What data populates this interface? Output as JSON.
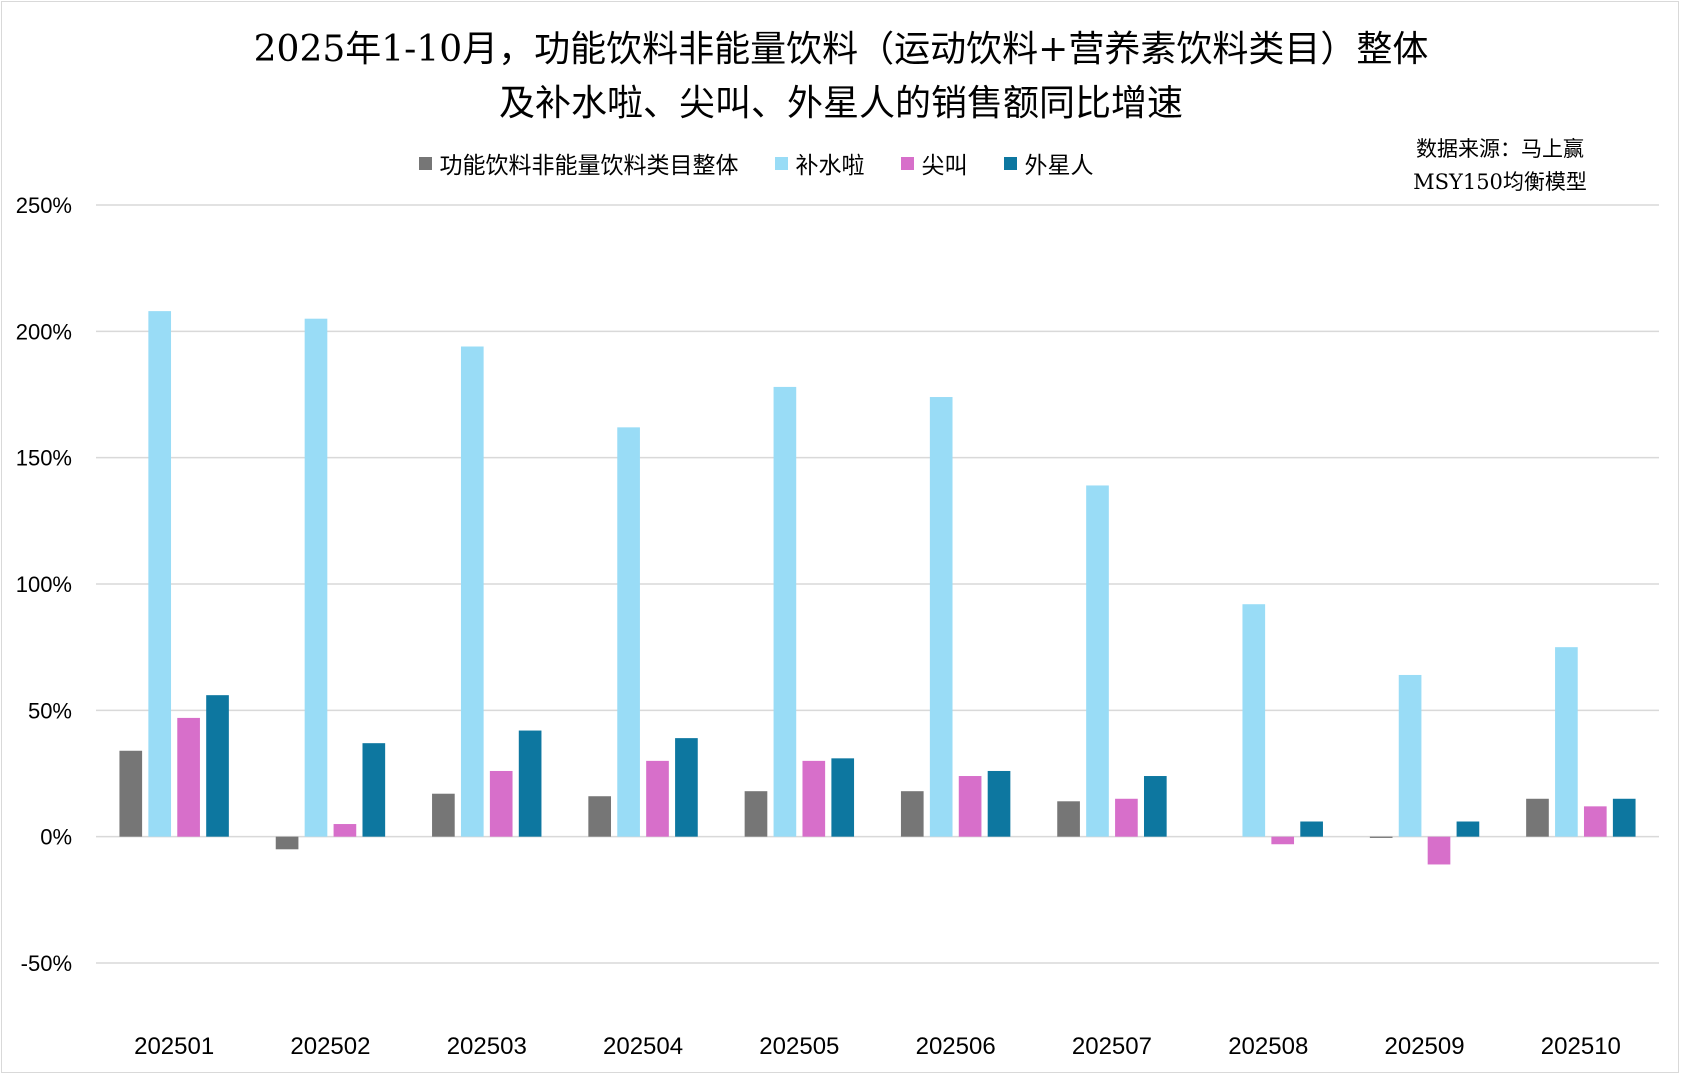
{
  "chart_data": {
    "type": "bar",
    "title": "2025年1-10月，功能饮料非能量饮料（运动饮料+营养素饮料类目）整体",
    "subtitle": "及补水啦、尖叫、外星人的销售额同比增速",
    "source_line1": "数据来源：马上赢",
    "source_line2": "MSY150均衡模型",
    "categories": [
      "202501",
      "202502",
      "202503",
      "202504",
      "202505",
      "202506",
      "202507",
      "202508",
      "202509",
      "202510"
    ],
    "series": [
      {
        "name": "功能饮料非能量饮料类目整体",
        "color": "#767676",
        "values": [
          34,
          -5,
          17,
          16,
          18,
          18,
          14,
          0,
          -0.5,
          15
        ]
      },
      {
        "name": "补水啦",
        "color": "#99dcf6",
        "values": [
          208,
          205,
          194,
          162,
          178,
          174,
          139,
          92,
          64,
          75
        ]
      },
      {
        "name": "尖叫",
        "color": "#d76fca",
        "values": [
          47,
          5,
          26,
          30,
          30,
          24,
          15,
          -3,
          -11,
          12
        ]
      },
      {
        "name": "外星人",
        "color": "#0d77a0",
        "values": [
          56,
          37,
          42,
          39,
          31,
          26,
          24,
          6,
          6,
          15
        ]
      }
    ],
    "ylim": [
      -50,
      250
    ],
    "yticks": [
      -50,
      0,
      50,
      100,
      150,
      200,
      250
    ],
    "ytick_labels": [
      "-50%",
      "0%",
      "50%",
      "100%",
      "150%",
      "200%",
      "250%"
    ],
    "grid": true,
    "legend": "top",
    "xlabel": "",
    "ylabel": ""
  }
}
